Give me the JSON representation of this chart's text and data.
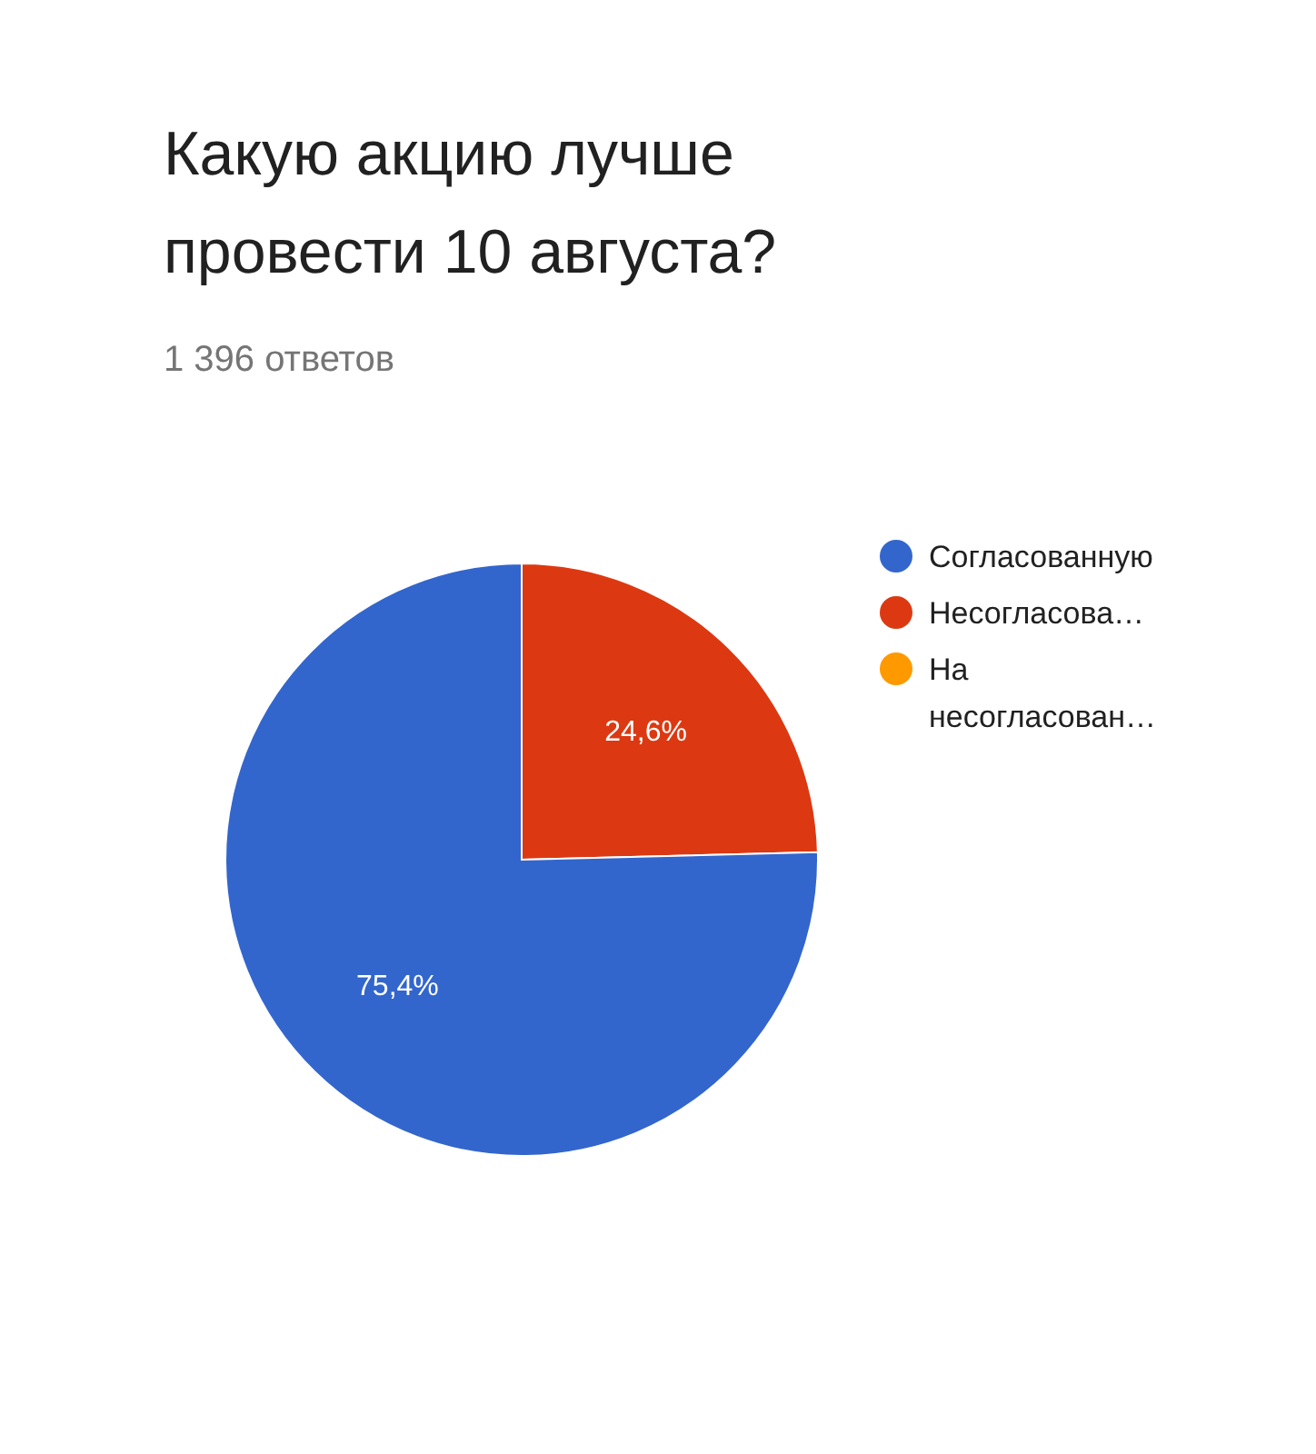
{
  "chart_data": {
    "type": "pie",
    "title": "Какую акцию лучше провести 10 августа?",
    "subtitle": "1 396 ответов",
    "categories": [
      "Согласованную",
      "Несогласова…",
      "На несогласован…"
    ],
    "values": [
      75.4,
      24.6,
      0
    ],
    "value_labels": [
      "75,4%",
      "24,6%",
      null
    ],
    "colors": [
      "#3366cc",
      "#dc3912",
      "#ff9900"
    ],
    "legend": "right"
  }
}
